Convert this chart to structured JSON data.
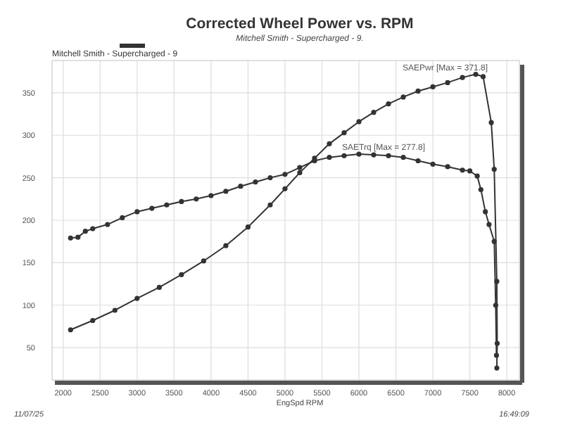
{
  "chart_data": {
    "type": "line",
    "title": "Corrected Wheel Power vs. RPM",
    "subtitle": "Mitchell Smith - Supercharged - 9.",
    "xlabel": "EngSpd RPM",
    "xlim": [
      1850,
      8170
    ],
    "xticks": [
      2000,
      2500,
      3000,
      3500,
      4000,
      4500,
      5000,
      5500,
      6000,
      6500,
      7000,
      7500,
      8000
    ],
    "ylim": [
      12,
      388
    ],
    "yticks": [
      50,
      100,
      150,
      200,
      250,
      300,
      350
    ],
    "grid": true,
    "marker": "circle",
    "line_style": "solid",
    "series": [
      {
        "name": "SAEPwr",
        "color": "#333333",
        "x": [
          2100,
          2400,
          2700,
          3000,
          3300,
          3600,
          3900,
          4200,
          4500,
          4800,
          5000,
          5200,
          5400,
          5600,
          5800,
          6000,
          6200,
          6400,
          6600,
          6800,
          7000,
          7200,
          7400,
          7580,
          7680,
          7790,
          7830,
          7865,
          7870,
          7865
        ],
        "values": [
          71,
          82,
          94,
          108,
          121,
          136,
          152,
          170,
          192,
          218,
          237,
          256,
          273,
          290,
          303,
          316,
          327,
          337,
          345,
          352,
          357,
          362,
          368,
          371.8,
          369,
          315,
          260,
          128,
          55,
          26
        ]
      },
      {
        "name": "SAETrq",
        "color": "#333333",
        "x": [
          2100,
          2200,
          2300,
          2400,
          2600,
          2800,
          3000,
          3200,
          3400,
          3600,
          3800,
          4000,
          4200,
          4400,
          4600,
          4800,
          5000,
          5200,
          5400,
          5600,
          5800,
          6000,
          6200,
          6400,
          6600,
          6800,
          7000,
          7200,
          7400,
          7500,
          7600,
          7650,
          7710,
          7760,
          7830,
          7850,
          7860
        ],
        "values": [
          179,
          180,
          187,
          190,
          195,
          203,
          210,
          214,
          218,
          222,
          225,
          229,
          234,
          240,
          245,
          250,
          254,
          262,
          270,
          274,
          276,
          277.8,
          277,
          276,
          274,
          270,
          266,
          263,
          259,
          258,
          252,
          236,
          210,
          195,
          175,
          100,
          41
        ]
      }
    ],
    "annotations": [
      {
        "text": "[Max = 371.8]",
        "x": 7580,
        "y": 371.8
      },
      {
        "text": "[Max = 277.8]",
        "x": 6000,
        "y": 277.8
      },
      "Mitchell Smith - Supercharged - 9",
      "11/07/25",
      "16:49:09"
    ]
  }
}
